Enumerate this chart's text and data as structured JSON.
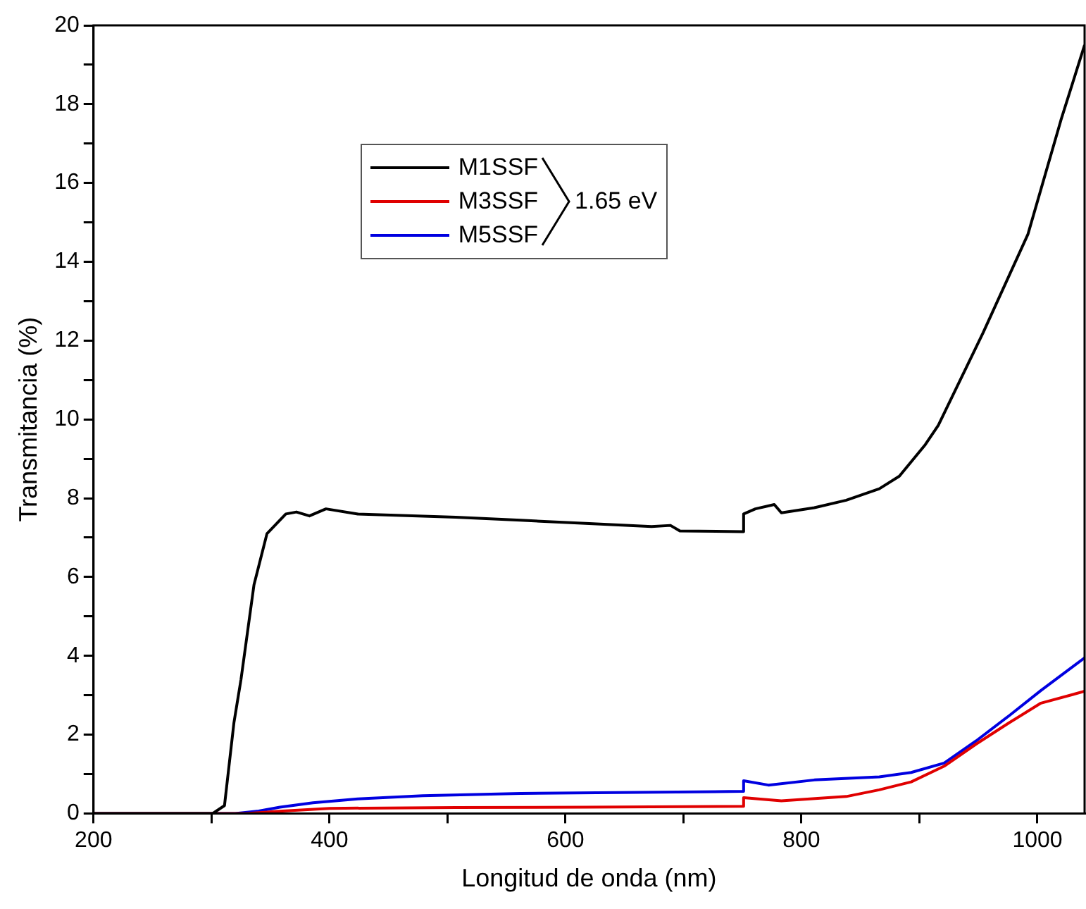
{
  "chart_data": {
    "type": "line",
    "xlabel": "Longitud de onda (nm)",
    "ylabel": "Transmitancia (%)",
    "xlim": [
      200,
      1040
    ],
    "ylim": [
      0,
      20
    ],
    "xticks": [
      200,
      {
        "value": 300,
        "label": null
      },
      400,
      {
        "value": 500,
        "label": null
      },
      600,
      {
        "value": 700,
        "label": null
      },
      800,
      {
        "value": 900,
        "label": null
      },
      1000
    ],
    "yticks": [
      0,
      {
        "value": 1,
        "label": null
      },
      2,
      {
        "value": 3,
        "label": null
      },
      4,
      {
        "value": 5,
        "label": null
      },
      6,
      {
        "value": 7,
        "label": null
      },
      8,
      {
        "value": 9,
        "label": null
      },
      10,
      {
        "value": 11,
        "label": null
      },
      12,
      {
        "value": 13,
        "label": null
      },
      14,
      {
        "value": 15,
        "label": null
      },
      16,
      {
        "value": 17,
        "label": null
      },
      18,
      {
        "value": 19,
        "label": null
      },
      20
    ],
    "legend": "top left",
    "line_style": "solid",
    "annotations": [
      "1.65 eV"
    ],
    "series": [
      {
        "name": "M1SSF",
        "color": "#000000",
        "x": [
          200,
          301,
          311,
          319,
          325,
          336,
          347,
          363,
          372,
          383,
          397,
          424,
          507,
          562,
          617,
          673,
          689,
          697,
          750,
          751,
          761,
          777,
          783,
          811,
          838,
          866,
          883,
          905,
          916,
          954,
          992,
          1020,
          1040
        ],
        "values": [
          0,
          0,
          0.2,
          2.3,
          3.4,
          5.8,
          7.1,
          7.6,
          7.65,
          7.55,
          7.73,
          7.6,
          7.52,
          7.44,
          7.36,
          7.28,
          7.31,
          7.17,
          7.15,
          7.6,
          7.73,
          7.84,
          7.63,
          7.76,
          7.95,
          8.24,
          8.56,
          9.36,
          9.85,
          12.2,
          14.7,
          17.6,
          19.5
        ]
      },
      {
        "name": "M3SSF",
        "color": "#e00000",
        "x": [
          200,
          330,
          360,
          400,
          507,
          617,
          750,
          751,
          783,
          838,
          866,
          893,
          921,
          948,
          976,
          1003,
          1040
        ],
        "values": [
          0,
          0,
          0.06,
          0.13,
          0.15,
          0.16,
          0.18,
          0.4,
          0.32,
          0.43,
          0.6,
          0.8,
          1.2,
          1.76,
          2.3,
          2.8,
          3.1
        ]
      },
      {
        "name": "M5SSF",
        "color": "#0000e0",
        "x": [
          200,
          320,
          340,
          358,
          386,
          424,
          479,
          562,
          750,
          751,
          772,
          811,
          866,
          893,
          921,
          948,
          976,
          1003,
          1040
        ],
        "values": [
          0,
          0,
          0.06,
          0.16,
          0.27,
          0.37,
          0.45,
          0.51,
          0.56,
          0.83,
          0.72,
          0.85,
          0.93,
          1.04,
          1.28,
          1.84,
          2.48,
          3.12,
          3.95
        ]
      }
    ]
  }
}
